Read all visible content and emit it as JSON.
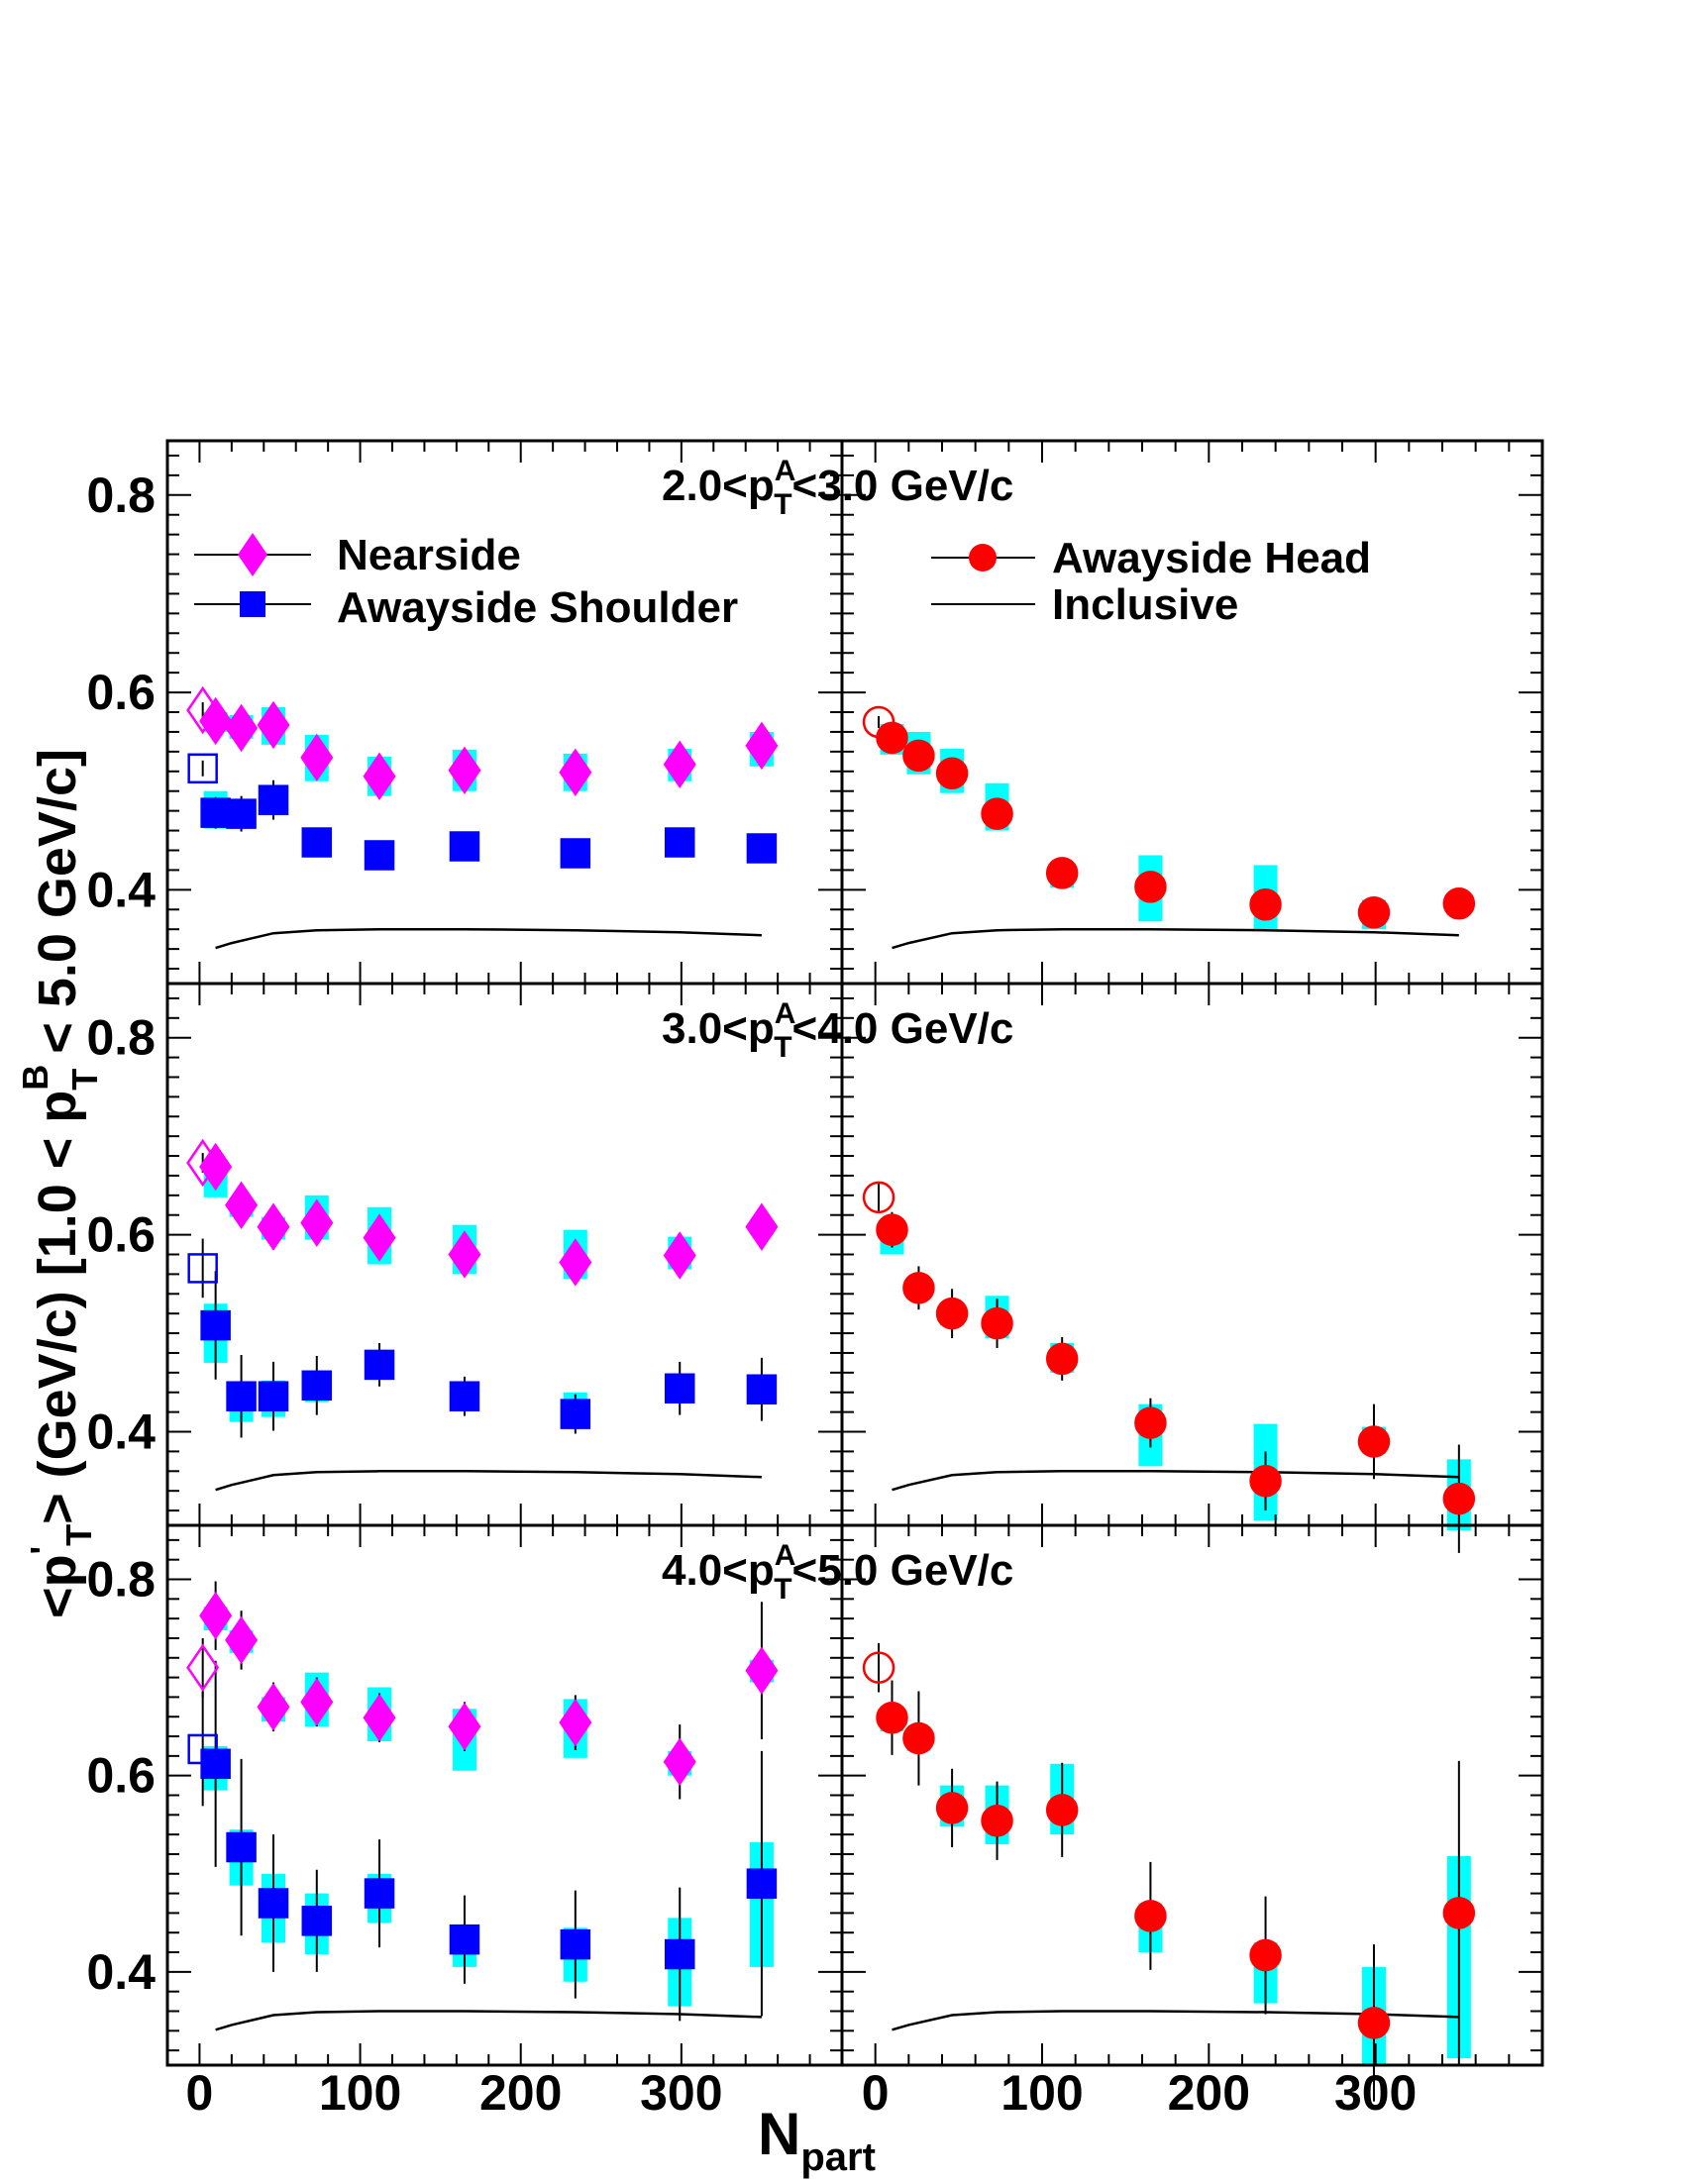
{
  "colors": {
    "nearside": "#ff00ff",
    "shoulder": "#0000ff",
    "head": "#ff0000",
    "syst_band": "#00ffff",
    "inclusive": "#000000"
  },
  "axes": {
    "xlabel_main": "N",
    "xlabel_sub": "part",
    "ylabel": "<p'T> (GeV/c) [1.0 < pBT < 5.0 GeV/c]",
    "ylabel_parts": {
      "lt": "<p",
      "prime": "'",
      "sub_T1": "T",
      "mid": "> (GeV/c) [1.0 < p",
      "sup_B": "B",
      "sub_T2": "T",
      "end": " < 5.0 GeV/c]"
    },
    "x_ticks": [
      "0",
      "100",
      "200",
      "300"
    ],
    "y_ticks": [
      "0.4",
      "0.6",
      "0.8"
    ]
  },
  "legend": {
    "nearside": "Nearside",
    "shoulder": "Awayside Shoulder",
    "head": "Awayside Head",
    "inclusive": "Inclusive"
  },
  "chart_data": [
    {
      "type": "scatter",
      "row": 0,
      "title": "2.0<pAT<3.0 GeV/c",
      "title_parts": {
        "pre": "2.0<p",
        "sup": "A",
        "sub": "T",
        "post": "<3.0 GeV/c"
      },
      "xlabel": "Npart",
      "ylabel": "<p'T> (GeV/c) [1.0 < pBT < 5.0 GeV/c]",
      "xlim": [
        -20,
        400
      ],
      "ylim": [
        0.305,
        0.855
      ],
      "left_panel": {
        "series": [
          {
            "name": "Nearside",
            "marker": "diamond",
            "x": [
              10,
              26,
              46,
              73,
              112,
              165,
              234,
              299,
              350
            ],
            "y": [
              0.571,
              0.564,
              0.567,
              0.534,
              0.515,
              0.521,
              0.519,
              0.527,
              0.546
            ],
            "syst": [
              [
                0.56,
                0.58
              ],
              [
                0.553,
                0.577
              ],
              [
                0.547,
                0.585
              ],
              [
                0.51,
                0.557
              ],
              [
                0.495,
                0.535
              ],
              [
                0.5,
                0.542
              ],
              [
                0.5,
                0.538
              ],
              [
                0.51,
                0.543
              ],
              [
                0.525,
                0.56
              ]
            ],
            "err": [
              0.008,
              0.008,
              0.008,
              0.008,
              0.008,
              0.008,
              0.008,
              0.008,
              0.008
            ],
            "pp": {
              "x": 2,
              "y": 0.582,
              "err": 0.008
            }
          },
          {
            "name": "Awayside Shoulder",
            "marker": "square",
            "x": [
              10,
              26,
              46,
              73,
              112,
              165,
              234,
              299,
              350
            ],
            "y": [
              0.478,
              0.477,
              0.491,
              0.448,
              0.435,
              0.444,
              0.437,
              0.448,
              0.442
            ],
            "syst": [
              [
                0.462,
                0.5
              ],
              [
                0.463,
                0.489
              ],
              [
                0.476,
                0.5
              ],
              [
                0.44,
                0.455
              ],
              [
                0.428,
                0.44
              ],
              [
                0.434,
                0.456
              ],
              [
                0.428,
                0.448
              ],
              [
                0.44,
                0.455
              ],
              [
                0.434,
                0.45
              ]
            ],
            "err": [
              0.016,
              0.018,
              0.02,
              0.008,
              0.008,
              0.008,
              0.008,
              0.008,
              0.008
            ],
            "pp": {
              "x": 2,
              "y": 0.523,
              "err": 0.008
            }
          }
        ]
      },
      "right_panel": {
        "series": [
          {
            "name": "Awayside Head",
            "marker": "circle",
            "x": [
              10,
              26,
              46,
              73,
              112,
              165,
              234,
              299,
              350
            ],
            "y": [
              0.554,
              0.536,
              0.518,
              0.477,
              0.417,
              0.403,
              0.385,
              0.377,
              0.386
            ],
            "syst": [
              [
                0.537,
                0.568
              ],
              [
                0.517,
                0.56
              ],
              [
                0.498,
                0.543
              ],
              [
                0.46,
                0.508
              ],
              [
                0.402,
                0.422
              ],
              [
                0.368,
                0.435
              ],
              [
                0.36,
                0.425
              ],
              [
                0.36,
                0.39
              ],
              [
                0.375,
                0.397
              ]
            ],
            "err": [
              0.008,
              0.008,
              0.008,
              0.008,
              0.008,
              0.008,
              0.008,
              0.008,
              0.008
            ],
            "pp": {
              "x": 2,
              "y": 0.57,
              "err": 0.006
            }
          }
        ]
      },
      "inclusive": {
        "x": [
          10,
          20,
          46,
          73,
          112,
          165,
          234,
          299,
          350
        ],
        "y": [
          0.341,
          0.346,
          0.356,
          0.359,
          0.36,
          0.36,
          0.359,
          0.357,
          0.354
        ]
      }
    },
    {
      "type": "scatter",
      "row": 1,
      "title": "3.0<pAT<4.0 GeV/c",
      "title_parts": {
        "pre": "3.0<p",
        "sup": "A",
        "sub": "T",
        "post": "<4.0 GeV/c"
      },
      "xlabel": "Npart",
      "ylabel": "<p'T> (GeV/c) [1.0 < pBT < 5.0 GeV/c]",
      "xlim": [
        -20,
        400
      ],
      "ylim": [
        0.305,
        0.855
      ],
      "left_panel": {
        "series": [
          {
            "name": "Nearside",
            "marker": "diamond",
            "x": [
              10,
              26,
              46,
              73,
              112,
              165,
              234,
              299,
              350
            ],
            "y": [
              0.669,
              0.63,
              0.608,
              0.612,
              0.597,
              0.58,
              0.572,
              0.579,
              0.608
            ],
            "syst": [
              [
                0.638,
                0.675
              ],
              [
                0.618,
                0.638
              ],
              [
                0.595,
                0.618
              ],
              [
                0.595,
                0.64
              ],
              [
                0.57,
                0.628
              ],
              [
                0.56,
                0.61
              ],
              [
                0.555,
                0.605
              ],
              [
                0.565,
                0.598
              ],
              [
                0.6,
                0.615
              ]
            ],
            "err": [
              0.01,
              0.01,
              0.01,
              0.01,
              0.01,
              0.01,
              0.01,
              0.01,
              0.01
            ],
            "pp": {
              "x": 2,
              "y": 0.673,
              "err": 0.01
            }
          },
          {
            "name": "Awayside Shoulder",
            "marker": "square",
            "x": [
              10,
              26,
              46,
              73,
              112,
              165,
              234,
              299,
              350
            ],
            "y": [
              0.508,
              0.436,
              0.436,
              0.447,
              0.468,
              0.436,
              0.418,
              0.444,
              0.443
            ],
            "syst": [
              [
                0.47,
                0.53
              ],
              [
                0.41,
                0.45
              ],
              [
                0.415,
                0.452
              ],
              [
                0.43,
                0.462
              ],
              [
                0.455,
                0.478
              ],
              [
                0.425,
                0.448
              ],
              [
                0.405,
                0.44
              ],
              [
                0.43,
                0.455
              ],
              [
                0.432,
                0.458
              ]
            ],
            "err": [
              0.055,
              0.042,
              0.035,
              0.03,
              0.022,
              0.02,
              0.02,
              0.027,
              0.032
            ],
            "pp": {
              "x": 2,
              "y": 0.566,
              "err": 0.03
            }
          }
        ]
      },
      "right_panel": {
        "series": [
          {
            "name": "Awayside Head",
            "marker": "circle",
            "x": [
              10,
              26,
              46,
              73,
              112,
              165,
              234,
              299,
              350
            ],
            "y": [
              0.605,
              0.546,
              0.52,
              0.51,
              0.474,
              0.409,
              0.35,
              0.39,
              0.332
            ],
            "syst": [
              [
                0.58,
                0.615
              ],
              [
                0.535,
                0.555
              ],
              [
                0.508,
                0.53
              ],
              [
                0.495,
                0.538
              ],
              [
                0.46,
                0.49
              ],
              [
                0.365,
                0.428
              ],
              [
                0.31,
                0.408
              ],
              [
                0.378,
                0.405
              ],
              [
                0.3,
                0.372
              ]
            ],
            "err": [
              0.018,
              0.022,
              0.025,
              0.025,
              0.022,
              0.025,
              0.03,
              0.038,
              0.055
            ],
            "pp": {
              "x": 2,
              "y": 0.638,
              "err": 0.015
            }
          }
        ]
      },
      "inclusive": {
        "x": [
          10,
          20,
          46,
          73,
          112,
          165,
          234,
          299,
          350
        ],
        "y": [
          0.341,
          0.346,
          0.356,
          0.359,
          0.36,
          0.36,
          0.359,
          0.357,
          0.354
        ]
      }
    },
    {
      "type": "scatter",
      "row": 2,
      "title": "4.0<pAT<5.0 GeV/c",
      "title_parts": {
        "pre": "4.0<p",
        "sup": "A",
        "sub": "T",
        "post": "<5.0 GeV/c"
      },
      "xlabel": "Npart",
      "ylabel": "<p'T> (GeV/c) [1.0 < pBT < 5.0 GeV/c]",
      "xlim": [
        -20,
        400
      ],
      "ylim": [
        0.305,
        0.855
      ],
      "left_panel": {
        "series": [
          {
            "name": "Nearside",
            "marker": "diamond",
            "x": [
              10,
              26,
              46,
              73,
              112,
              165,
              234,
              299,
              350
            ],
            "y": [
              0.763,
              0.738,
              0.67,
              0.675,
              0.659,
              0.65,
              0.654,
              0.614,
              0.707
            ],
            "syst": [
              [
                0.748,
                0.772
              ],
              [
                0.725,
                0.748
              ],
              [
                0.655,
                0.68
              ],
              [
                0.65,
                0.705
              ],
              [
                0.635,
                0.69
              ],
              [
                0.605,
                0.668
              ],
              [
                0.618,
                0.678
              ],
              [
                0.6,
                0.625
              ],
              [
                0.695,
                0.718
              ]
            ],
            "err": [
              0.035,
              0.03,
              0.025,
              0.025,
              0.025,
              0.025,
              0.028,
              0.038,
              0.07
            ],
            "pp": {
              "x": 2,
              "y": 0.71,
              "err": 0.03
            }
          },
          {
            "name": "Awayside Shoulder",
            "marker": "square",
            "x": [
              10,
              26,
              46,
              73,
              112,
              165,
              234,
              299,
              350
            ],
            "y": [
              0.612,
              0.527,
              0.47,
              0.452,
              0.48,
              0.433,
              0.428,
              0.418,
              0.49
            ],
            "syst": [
              [
                0.585,
                0.63
              ],
              [
                0.488,
                0.545
              ],
              [
                0.43,
                0.5
              ],
              [
                0.418,
                0.48
              ],
              [
                0.45,
                0.5
              ],
              [
                0.405,
                0.448
              ],
              [
                0.39,
                0.445
              ],
              [
                0.365,
                0.455
              ],
              [
                0.405,
                0.532
              ]
            ],
            "err": [
              0.105,
              0.09,
              0.07,
              0.052,
              0.055,
              0.045,
              0.055,
              0.068,
              0.135
            ],
            "pp": {
              "x": 2,
              "y": 0.627,
              "err": 0.058
            }
          }
        ]
      },
      "right_panel": {
        "series": [
          {
            "name": "Awayside Head",
            "marker": "circle",
            "x": [
              10,
              26,
              46,
              73,
              112,
              165,
              234,
              299,
              350
            ],
            "y": [
              0.659,
              0.638,
              0.567,
              0.554,
              0.565,
              0.457,
              0.417,
              0.348,
              0.46
            ],
            "syst": [
              [
                0.645,
                0.67
              ],
              [
                0.625,
                0.648
              ],
              [
                0.548,
                0.59
              ],
              [
                0.53,
                0.59
              ],
              [
                0.54,
                0.612
              ],
              [
                0.42,
                0.47
              ],
              [
                0.368,
                0.43
              ],
              [
                0.305,
                0.405
              ],
              [
                0.312,
                0.518
              ]
            ],
            "err": [
              0.038,
              0.048,
              0.04,
              0.04,
              0.048,
              0.055,
              0.06,
              0.08,
              0.155
            ],
            "pp": {
              "x": 2,
              "y": 0.71,
              "err": 0.025
            }
          }
        ]
      },
      "inclusive": {
        "x": [
          10,
          20,
          46,
          73,
          112,
          165,
          234,
          299,
          350
        ],
        "y": [
          0.341,
          0.346,
          0.356,
          0.359,
          0.36,
          0.36,
          0.359,
          0.357,
          0.354
        ]
      }
    }
  ]
}
